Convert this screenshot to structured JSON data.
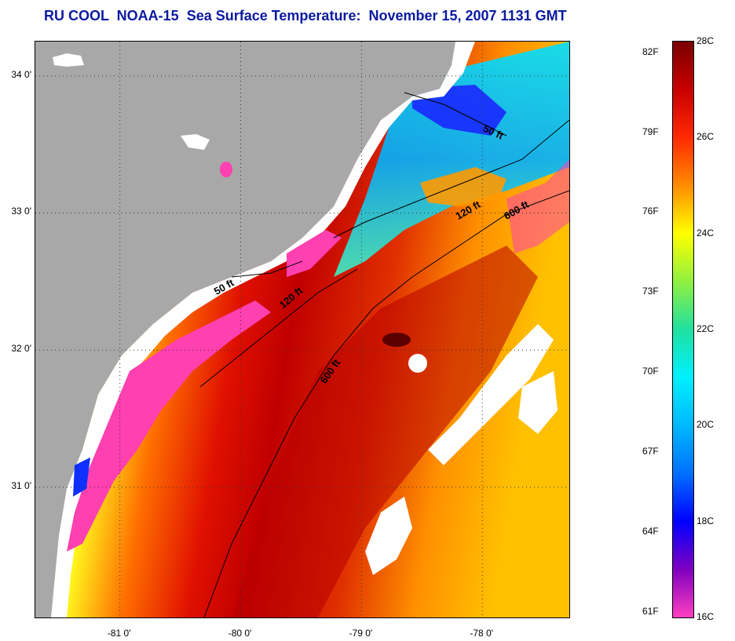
{
  "title": "RU COOL  NOAA-15  Sea Surface Temperature:  November 15, 2007 1131 GMT",
  "map": {
    "lat_range": [
      30.05,
      34.25
    ],
    "lon_range": [
      -81.7,
      -77.28
    ],
    "lat_ticks": [
      {
        "value": 34,
        "label": "34 0'"
      },
      {
        "value": 33,
        "label": "33 0'"
      },
      {
        "value": 32,
        "label": "32 0'"
      },
      {
        "value": 31,
        "label": "31 0'"
      }
    ],
    "lon_ticks": [
      {
        "value": -81,
        "label": "-81 0'"
      },
      {
        "value": -80,
        "label": "-80 0'"
      },
      {
        "value": -79,
        "label": "-79 0'"
      },
      {
        "value": -78,
        "label": "-78 0'"
      }
    ],
    "land_color": "#a8a8a8",
    "cloud_color": "#ffffff",
    "isobath_labels": [
      {
        "text": "50 ft",
        "lon": -78.0,
        "lat": 33.6,
        "angle": 25
      },
      {
        "text": "120 ft",
        "lon": -78.2,
        "lat": 32.95,
        "angle": -30
      },
      {
        "text": "600 ft",
        "lon": -77.8,
        "lat": 32.95,
        "angle": -30
      },
      {
        "text": "50 ft",
        "lon": -80.2,
        "lat": 32.4,
        "angle": -30
      },
      {
        "text": "120 ft",
        "lon": -79.65,
        "lat": 32.3,
        "angle": -40
      },
      {
        "text": "600 ft",
        "lon": -79.3,
        "lat": 31.75,
        "angle": -55
      }
    ]
  },
  "colorbar": {
    "c_labels": [
      {
        "value": 28,
        "label": "28C"
      },
      {
        "value": 26,
        "label": "26C"
      },
      {
        "value": 24,
        "label": "24C"
      },
      {
        "value": 22,
        "label": "22C"
      },
      {
        "value": 20,
        "label": "20C"
      },
      {
        "value": 18,
        "label": "18C"
      },
      {
        "value": 16,
        "label": "16C"
      }
    ],
    "f_labels": [
      {
        "value": 82,
        "label": "82F"
      },
      {
        "value": 79,
        "label": "79F"
      },
      {
        "value": 76,
        "label": "76F"
      },
      {
        "value": 73,
        "label": "73F"
      },
      {
        "value": 70,
        "label": "70F"
      },
      {
        "value": 67,
        "label": "67F"
      },
      {
        "value": 64,
        "label": "64F"
      },
      {
        "value": 61,
        "label": "61F"
      }
    ],
    "range_c": [
      16,
      28
    ],
    "gradient_stops": [
      {
        "c": 28,
        "color": "#7a0000"
      },
      {
        "c": 27,
        "color": "#c80000"
      },
      {
        "c": 26,
        "color": "#ff2a00"
      },
      {
        "c": 25,
        "color": "#ff8c00"
      },
      {
        "c": 24,
        "color": "#ffff00"
      },
      {
        "c": 23,
        "color": "#90f040"
      },
      {
        "c": 22,
        "color": "#20e0a0"
      },
      {
        "c": 21,
        "color": "#00f0ff"
      },
      {
        "c": 20,
        "color": "#00b8ff"
      },
      {
        "c": 19,
        "color": "#0070ff"
      },
      {
        "c": 18,
        "color": "#0000ff"
      },
      {
        "c": 17,
        "color": "#8000c0"
      },
      {
        "c": 16,
        "color": "#ff40c0"
      }
    ]
  }
}
